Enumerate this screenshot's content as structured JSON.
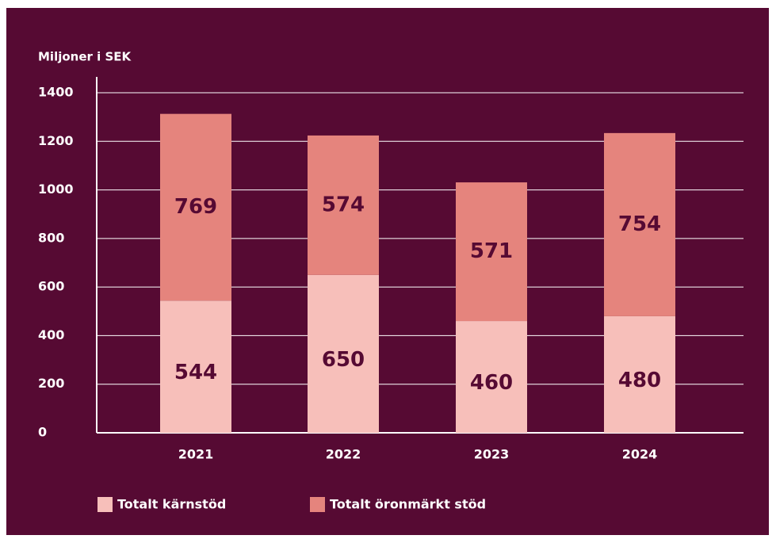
{
  "chart_data": {
    "type": "stacked_bar",
    "y_axis_label": "Miljoner i SEK",
    "categories": [
      "2021",
      "2022",
      "2023",
      "2024"
    ],
    "series": [
      {
        "name": "Totalt kärnstöd",
        "color": "#f7bfba",
        "values": [
          544,
          650,
          460,
          480
        ]
      },
      {
        "name": "Totalt öronmärkt stöd",
        "color": "#e5847d",
        "values": [
          769,
          574,
          571,
          754
        ]
      }
    ],
    "ylim": [
      0,
      1400
    ],
    "yticks": [
      0,
      200,
      400,
      600,
      800,
      1000,
      1200,
      1400
    ],
    "grid": true,
    "legend": "bottom"
  }
}
